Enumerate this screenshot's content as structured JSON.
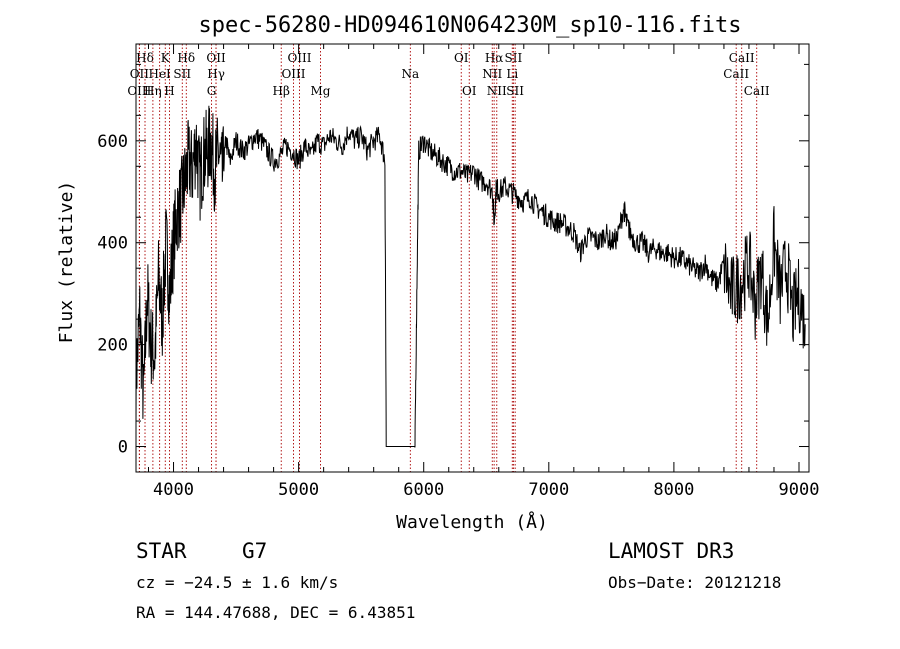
{
  "chart_data": {
    "type": "line",
    "title": "spec-56280-HD094610N064230M_sp10-116.fits",
    "xlabel": "Wavelength (Å)",
    "ylabel": "Flux (relative)",
    "xlim": [
      3700,
      9080
    ],
    "ylim": [
      -50,
      790
    ],
    "xticks": [
      4000,
      5000,
      6000,
      7000,
      8000,
      9000
    ],
    "yticks": [
      0,
      200,
      400,
      600
    ],
    "grid": false,
    "series": [
      {
        "color": "#000000",
        "x": [
          3700,
          3730,
          3760,
          3790,
          3820,
          3850,
          3880,
          3910,
          3940,
          3970,
          4000,
          4030,
          4060,
          4090,
          4120,
          4150,
          4180,
          4210,
          4240,
          4270,
          4300,
          4330,
          4360,
          4390,
          4420,
          4450,
          4500,
          4550,
          4600,
          4650,
          4700,
          4750,
          4800,
          4850,
          4900,
          4950,
          5000,
          5050,
          5100,
          5150,
          5200,
          5250,
          5300,
          5350,
          5400,
          5450,
          5500,
          5550,
          5600,
          5650,
          5690,
          5700,
          5750,
          5800,
          5850,
          5900,
          5930,
          5945,
          5960,
          6000,
          6050,
          6100,
          6150,
          6200,
          6250,
          6300,
          6350,
          6400,
          6450,
          6500,
          6550,
          6563,
          6580,
          6600,
          6650,
          6700,
          6750,
          6800,
          6850,
          6900,
          6950,
          7000,
          7050,
          7100,
          7150,
          7200,
          7250,
          7300,
          7350,
          7400,
          7450,
          7500,
          7550,
          7600,
          7620,
          7650,
          7700,
          7750,
          7800,
          7850,
          7900,
          7950,
          8000,
          8050,
          8100,
          8150,
          8200,
          8250,
          8300,
          8350,
          8400,
          8450,
          8500,
          8550,
          8600,
          8650,
          8700,
          8750,
          8800,
          8850,
          8900,
          8950,
          9000,
          9050
        ],
        "y": [
          130,
          260,
          90,
          300,
          200,
          180,
          330,
          250,
          400,
          300,
          400,
          460,
          480,
          520,
          560,
          540,
          600,
          520,
          570,
          580,
          600,
          540,
          580,
          530,
          600,
          560,
          600,
          580,
          590,
          610,
          600,
          580,
          560,
          570,
          590,
          580,
          560,
          590,
          570,
          600,
          590,
          610,
          600,
          590,
          620,
          600,
          610,
          580,
          600,
          610,
          560,
          0,
          0,
          0,
          0,
          0,
          0,
          300,
          580,
          600,
          580,
          570,
          560,
          550,
          540,
          540,
          530,
          540,
          520,
          520,
          500,
          440,
          510,
          500,
          510,
          500,
          490,
          480,
          490,
          470,
          460,
          450,
          440,
          440,
          430,
          420,
          380,
          410,
          410,
          400,
          420,
          400,
          410,
          470,
          440,
          420,
          400,
          400,
          380,
          390,
          380,
          380,
          370,
          370,
          360,
          350,
          340,
          360,
          330,
          320,
          360,
          300,
          310,
          330,
          360,
          280,
          350,
          240,
          400,
          300,
          360,
          260,
          300,
          240
        ]
      }
    ],
    "line_markers": [
      {
        "label": "Hδ",
        "x": 3772,
        "row": 1
      },
      {
        "label": "K",
        "x": 3934,
        "row": 1
      },
      {
        "label": "Hδ",
        "x": 4102,
        "row": 1
      },
      {
        "label": "OII",
        "x": 4340,
        "row": 1
      },
      {
        "label": "OIII",
        "x": 5007,
        "row": 1
      },
      {
        "label": "OI",
        "x": 6300,
        "row": 1
      },
      {
        "label": "Hα",
        "x": 6563,
        "row": 1
      },
      {
        "label": "SII",
        "x": 6717,
        "row": 1
      },
      {
        "label": "CaII",
        "x": 8542,
        "row": 1
      },
      {
        "label": "OII",
        "x": 3727,
        "row": 2
      },
      {
        "label": "HeI",
        "x": 3889,
        "row": 2
      },
      {
        "label": "SII",
        "x": 4070,
        "row": 2
      },
      {
        "label": "Hγ",
        "x": 4340,
        "row": 2
      },
      {
        "label": "OIII",
        "x": 4959,
        "row": 2
      },
      {
        "label": "Na",
        "x": 5893,
        "row": 2
      },
      {
        "label": "NII",
        "x": 6548,
        "row": 2
      },
      {
        "label": "Li",
        "x": 6708,
        "row": 2
      },
      {
        "label": "CaII",
        "x": 8498,
        "row": 2
      },
      {
        "label": "OIII",
        "x": 3727,
        "row": 3
      },
      {
        "label": "Hη",
        "x": 3835,
        "row": 3
      },
      {
        "label": "H",
        "x": 3968,
        "row": 3
      },
      {
        "label": "G",
        "x": 4304,
        "row": 3
      },
      {
        "label": "Hβ",
        "x": 4861,
        "row": 3
      },
      {
        "label": "Mg",
        "x": 5175,
        "row": 3
      },
      {
        "label": "OI",
        "x": 6364,
        "row": 3
      },
      {
        "label": "NII",
        "x": 6584,
        "row": 3
      },
      {
        "label": "SII",
        "x": 6731,
        "row": 3
      },
      {
        "label": "CaII",
        "x": 8662,
        "row": 3
      }
    ]
  },
  "info": {
    "object_class": "STAR",
    "subclass": "G7",
    "survey": "LAMOST DR3",
    "cz": "cz = −24.5 ± 1.6 km/s",
    "obs_date": "Obs−Date: 20121218",
    "coords": "RA = 144.47688, DEC =    6.43851"
  }
}
